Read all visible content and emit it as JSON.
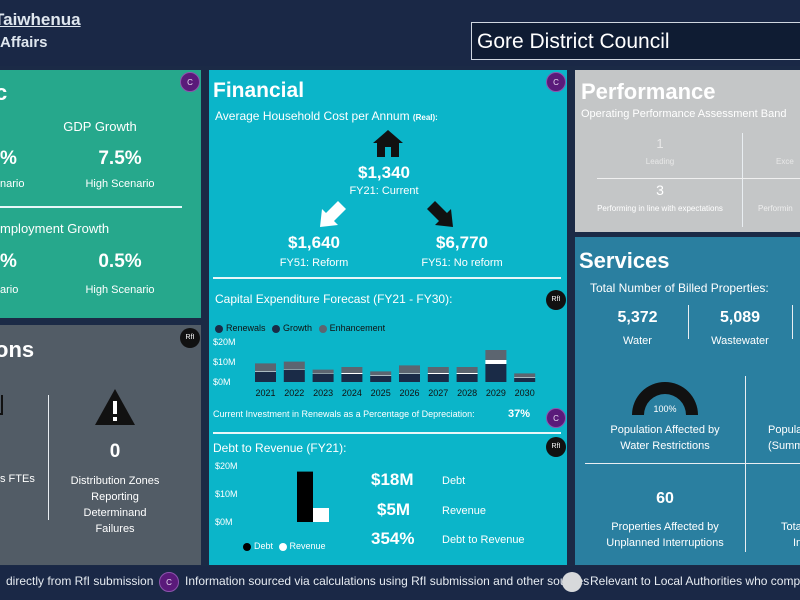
{
  "header": {
    "brand_line1": "Taiwhenua",
    "brand_line2": "Affairs",
    "council": "Gore District Council"
  },
  "economic": {
    "title": "c",
    "gdp_label": "GDP Growth",
    "gdp_low_value": "%",
    "gdp_low_label": "nario",
    "gdp_high_value": "7.5%",
    "gdp_high_label": "High Scenario",
    "emp_label": "mployment Growth",
    "emp_low_value": "%",
    "emp_low_label": "ario",
    "emp_high_value": "0.5%",
    "emp_high_label": "High Scenario",
    "badge": "C"
  },
  "operations": {
    "title": "ons",
    "badge": "RfI",
    "ftes_label": "s FTEs",
    "zones_value": "0",
    "zones_label1": "Distribution Zones",
    "zones_label2": "Reporting",
    "zones_label3": "Determinand",
    "zones_label4": "Failures"
  },
  "financial": {
    "title": "Financial",
    "badge": "C",
    "hh_cost_label": "Average Household Cost per Annum",
    "hh_cost_suffix": "(Real):",
    "current_value": "$1,340",
    "current_label": "FY21: Current",
    "reform_value": "$1,640",
    "reform_label": "FY51: Reform",
    "noreform_value": "$6,770",
    "noreform_label": "FY51: No reform",
    "capex_title": "Capital Expenditure Forecast (FY21 - FY30):",
    "capex_badge": "RfI",
    "legend": [
      "Renewals",
      "Growth",
      "Enhancement"
    ],
    "renewals_label": "Current Investment in Renewals as a Percentage of Depreciation:",
    "renewals_value": "37%",
    "renewals_badge": "C",
    "debt_title": "Debt to Revenue (FY21):",
    "debt_badge": "RfI",
    "debt_value": "$18M",
    "debt_label": "Debt",
    "revenue_value": "$5M",
    "revenue_label": "Revenue",
    "ratio_value": "354%",
    "ratio_label": "Debt to Revenue",
    "debt_legend_debt": "Debt",
    "debt_legend_revenue": "Revenue"
  },
  "performance": {
    "title": "Performance",
    "subtitle": "Operating Performance Assessment Band",
    "leading_value": "1",
    "leading_label": "Leading",
    "exceeding_label": "Exce",
    "inline_value": "3",
    "inline_label": "Performing in line with expectations",
    "performing_label": "Performin"
  },
  "services": {
    "title": "Services",
    "billed_label": "Total Number of Billed Properties:",
    "water_value": "5,372",
    "water_label": "Water",
    "ww_value": "5,089",
    "ww_label": "Wastewater",
    "gauge_value": "100%",
    "restrict_label1": "Population Affected by",
    "restrict_label2": "Water Restrictions",
    "popu_label1": "Popula",
    "popu_label2": "(Summ",
    "unplanned_value": "60",
    "unplanned_label1": "Properties Affected by",
    "unplanned_label2": "Unplanned Interruptions",
    "tota_label1": "Tota",
    "tota_label2": "In"
  },
  "footer": {
    "item1": "directly from RfI submission",
    "item2": "Information sourced via calculations using RfI submission and other sources",
    "item2_badge": "C",
    "item3": "Relevant to Local Authorities who comp"
  },
  "chart_data": [
    {
      "type": "bar",
      "title": "Capital Expenditure Forecast (FY21 - FY30):",
      "categories": [
        "2021",
        "2022",
        "2023",
        "2024",
        "2025",
        "2026",
        "2027",
        "2028",
        "2029",
        "2030"
      ],
      "series": [
        {
          "name": "Renewals",
          "values": [
            5,
            6,
            4,
            4,
            3,
            4,
            4,
            4,
            9,
            2
          ]
        },
        {
          "name": "Growth",
          "values": [
            0.3,
            0.2,
            0.2,
            0.5,
            0.3,
            0.3,
            0.5,
            0.5,
            2,
            0.3
          ]
        },
        {
          "name": "Enhancement",
          "values": [
            4,
            4,
            2,
            3,
            2,
            4,
            3,
            3,
            5,
            2
          ]
        }
      ],
      "yticks": [
        "$20M",
        "$10M",
        "$0M"
      ],
      "ylim": [
        0,
        20
      ],
      "colors": {
        "Renewals": "#1a2b47",
        "Growth": "#ffffff",
        "Enhancement": "#5c6570"
      }
    },
    {
      "type": "bar",
      "title": "Debt to Revenue (FY21):",
      "categories": [
        "Debt",
        "Revenue"
      ],
      "values": [
        18,
        5
      ],
      "yticks": [
        "$20M",
        "$10M",
        "$0M"
      ],
      "ylim": [
        0,
        20
      ],
      "colors": {
        "Debt": "#000000",
        "Revenue": "#ffffff"
      }
    }
  ]
}
